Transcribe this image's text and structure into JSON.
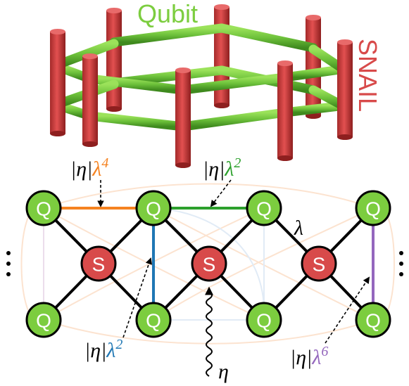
{
  "header": {
    "qubit_label": "Qubit",
    "snail_label": "SNAIL"
  },
  "nodes": [
    {
      "label": "Q"
    },
    {
      "label": "Q"
    },
    {
      "label": "Q"
    },
    {
      "label": "Q"
    },
    {
      "label": "Q"
    },
    {
      "label": "Q"
    },
    {
      "label": "Q"
    },
    {
      "label": "Q"
    },
    {
      "label": "S"
    },
    {
      "label": "S"
    },
    {
      "label": "S"
    }
  ],
  "annotations": [
    {
      "text": "|η|λ",
      "sup": "4"
    },
    {
      "text": "|η|λ",
      "sup": "2"
    },
    {
      "text": "λ"
    },
    {
      "text": "|η|λ",
      "sup": "2"
    },
    {
      "text": "|η|λ",
      "sup": "6"
    },
    {
      "text": "η"
    }
  ]
}
